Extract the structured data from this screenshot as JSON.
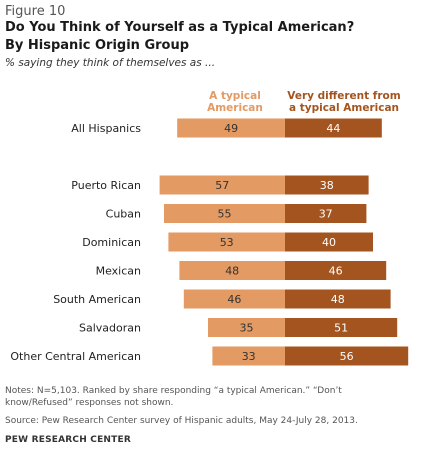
{
  "figure_label": "Figure 10",
  "title_line1": "Do You Think of Yourself as a Typical American?",
  "title_line2": "By Hispanic Origin Group",
  "subtitle": "% saying they think of themselves as ...",
  "colors": {
    "typical": "#e39a63",
    "different": "#a4541e"
  },
  "chart_data": {
    "type": "bar",
    "orientation": "diverging-horizontal",
    "categories": [
      "All Hispanics",
      "Puerto Rican",
      "Cuban",
      "Dominican",
      "Mexican",
      "South American",
      "Salvadoran",
      "Other Central American"
    ],
    "series": [
      {
        "name": "A typical American",
        "values": [
          49,
          57,
          55,
          53,
          48,
          46,
          35,
          33
        ]
      },
      {
        "name": "Very different from a typical American",
        "values": [
          44,
          38,
          37,
          40,
          46,
          48,
          51,
          56
        ]
      }
    ],
    "legend": {
      "typical_line1": "A typical",
      "typical_line2": "American",
      "different_line1": "Very different from",
      "different_line2": "a typical American"
    }
  },
  "notes_line1": "Notes: N=5,103. Ranked by share responding “a typical American.” “Don’t",
  "notes_line2": "know/Refused” responses not shown.",
  "source": "Source: Pew Research Center survey of Hispanic adults, May 24-July 28, 2013.",
  "org": "PEW RESEARCH CENTER"
}
